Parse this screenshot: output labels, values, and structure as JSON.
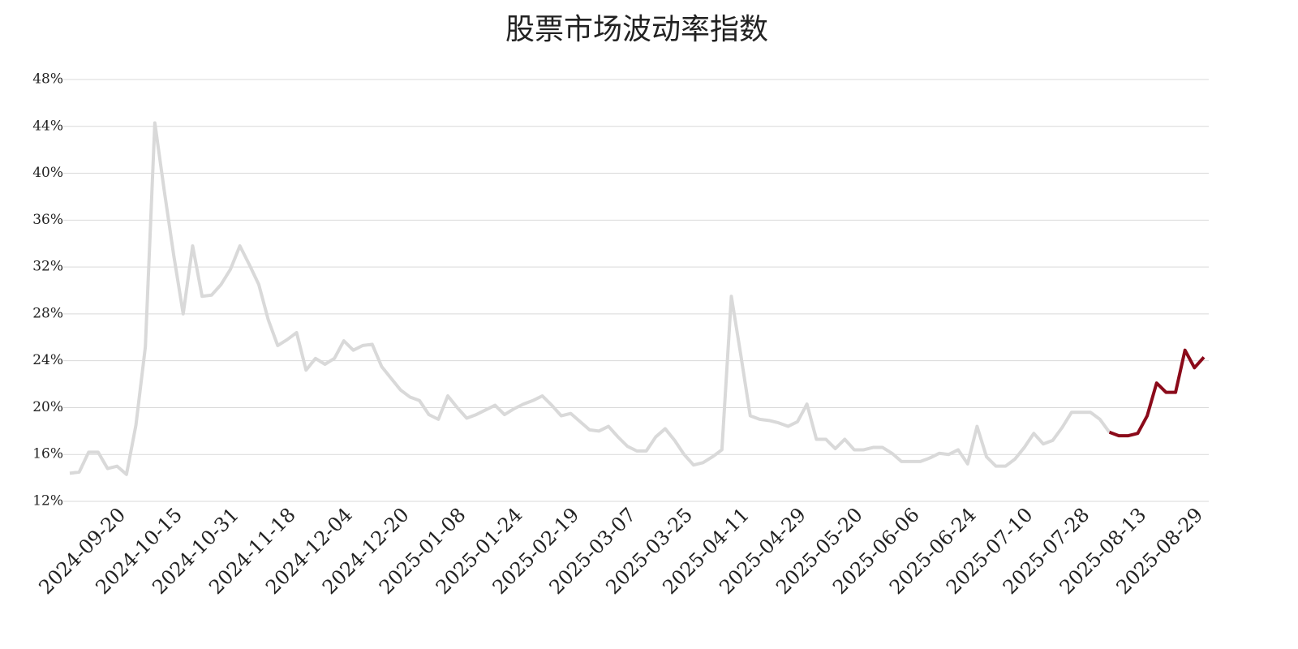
{
  "chart_data": {
    "type": "line",
    "title": "股票市场波动率指数",
    "categories": [
      null,
      null,
      null,
      null,
      null,
      null,
      "2024-09-20",
      null,
      null,
      null,
      null,
      null,
      "2024-10-15",
      null,
      null,
      null,
      null,
      null,
      "2024-10-31",
      null,
      null,
      null,
      null,
      null,
      "2024-11-18",
      null,
      null,
      null,
      null,
      null,
      "2024-12-04",
      null,
      null,
      null,
      null,
      null,
      "2024-12-20",
      null,
      null,
      null,
      null,
      null,
      "2025-01-08",
      null,
      null,
      null,
      null,
      null,
      "2025-01-24",
      null,
      null,
      null,
      null,
      null,
      "2025-02-19",
      null,
      null,
      null,
      null,
      null,
      "2025-03-07",
      null,
      null,
      null,
      null,
      null,
      "2025-03-25",
      null,
      null,
      null,
      null,
      null,
      "2025-04-11",
      null,
      null,
      null,
      null,
      null,
      "2025-04-29",
      null,
      null,
      null,
      null,
      null,
      "2025-05-20",
      null,
      null,
      null,
      null,
      null,
      "2025-06-06",
      null,
      null,
      null,
      null,
      null,
      "2025-06-24",
      null,
      null,
      null,
      null,
      null,
      "2025-07-10",
      null,
      null,
      null,
      null,
      null,
      "2025-07-28",
      null,
      null,
      null,
      null,
      null,
      "2025-08-13",
      null,
      null,
      null,
      null,
      null,
      "2025-08-29"
    ],
    "series": [
      {
        "color": "#d9d9d9",
        "values": [
          14.4,
          14.5,
          16.2,
          16.2,
          14.8,
          15.0,
          14.3,
          18.5,
          25.2,
          44.3,
          38.5,
          33.0,
          28.0,
          33.8,
          29.5,
          29.6,
          30.5,
          31.8,
          33.8,
          32.2,
          30.5,
          27.5,
          25.3,
          25.8,
          26.4,
          23.2,
          24.2,
          23.7,
          24.2,
          25.7,
          24.9,
          25.3,
          25.4,
          23.5,
          22.5,
          21.5,
          20.9,
          20.6,
          19.4,
          19.0,
          21.0,
          20.0,
          19.1,
          19.4,
          19.8,
          20.2,
          19.4,
          19.9,
          20.3,
          20.6,
          21.0,
          20.2,
          19.3,
          19.5,
          18.8,
          18.1,
          18.0,
          18.4,
          17.5,
          16.7,
          16.3,
          16.3,
          17.5,
          18.2,
          17.2,
          16.0,
          15.1,
          15.3,
          15.8,
          16.4,
          29.5,
          24.5,
          19.3,
          19.0,
          18.9,
          18.7,
          18.4,
          18.8,
          20.3,
          17.3,
          17.3,
          16.5,
          17.3,
          16.4,
          16.4,
          16.6,
          16.6,
          16.1,
          15.4,
          15.4,
          15.4,
          15.7,
          16.1,
          16.0,
          16.4,
          15.2,
          18.4,
          15.8,
          15.0,
          15.0,
          15.6,
          16.6,
          17.8,
          16.9,
          17.2,
          18.3,
          19.6,
          19.6,
          19.6,
          19.0,
          17.9,
          null,
          null,
          null,
          null,
          null,
          null,
          null,
          null,
          null,
          null
        ]
      },
      {
        "color": "#8b0a1a",
        "values": [
          null,
          null,
          null,
          null,
          null,
          null,
          null,
          null,
          null,
          null,
          null,
          null,
          null,
          null,
          null,
          null,
          null,
          null,
          null,
          null,
          null,
          null,
          null,
          null,
          null,
          null,
          null,
          null,
          null,
          null,
          null,
          null,
          null,
          null,
          null,
          null,
          null,
          null,
          null,
          null,
          null,
          null,
          null,
          null,
          null,
          null,
          null,
          null,
          null,
          null,
          null,
          null,
          null,
          null,
          null,
          null,
          null,
          null,
          null,
          null,
          null,
          null,
          null,
          null,
          null,
          null,
          null,
          null,
          null,
          null,
          null,
          null,
          null,
          null,
          null,
          null,
          null,
          null,
          null,
          null,
          null,
          null,
          null,
          null,
          null,
          null,
          null,
          null,
          null,
          null,
          null,
          null,
          null,
          null,
          null,
          null,
          null,
          null,
          null,
          null,
          null,
          null,
          null,
          null,
          null,
          null,
          null,
          null,
          null,
          null,
          17.9,
          17.6,
          17.6,
          17.8,
          19.3,
          22.1,
          21.3,
          21.3,
          24.9,
          23.4,
          24.3
        ]
      }
    ],
    "ylim": [
      12,
      48
    ],
    "yticks": [
      {
        "value": 12,
        "label": "12%"
      },
      {
        "value": 16,
        "label": "16%"
      },
      {
        "value": 20,
        "label": "20%"
      },
      {
        "value": 24,
        "label": "24%"
      },
      {
        "value": 28,
        "label": "28%"
      },
      {
        "value": 32,
        "label": "32%"
      },
      {
        "value": 36,
        "label": "36%"
      },
      {
        "value": 40,
        "label": "40%"
      },
      {
        "value": 44,
        "label": "44%"
      },
      {
        "value": 48,
        "label": "48%"
      }
    ],
    "grid": true
  }
}
